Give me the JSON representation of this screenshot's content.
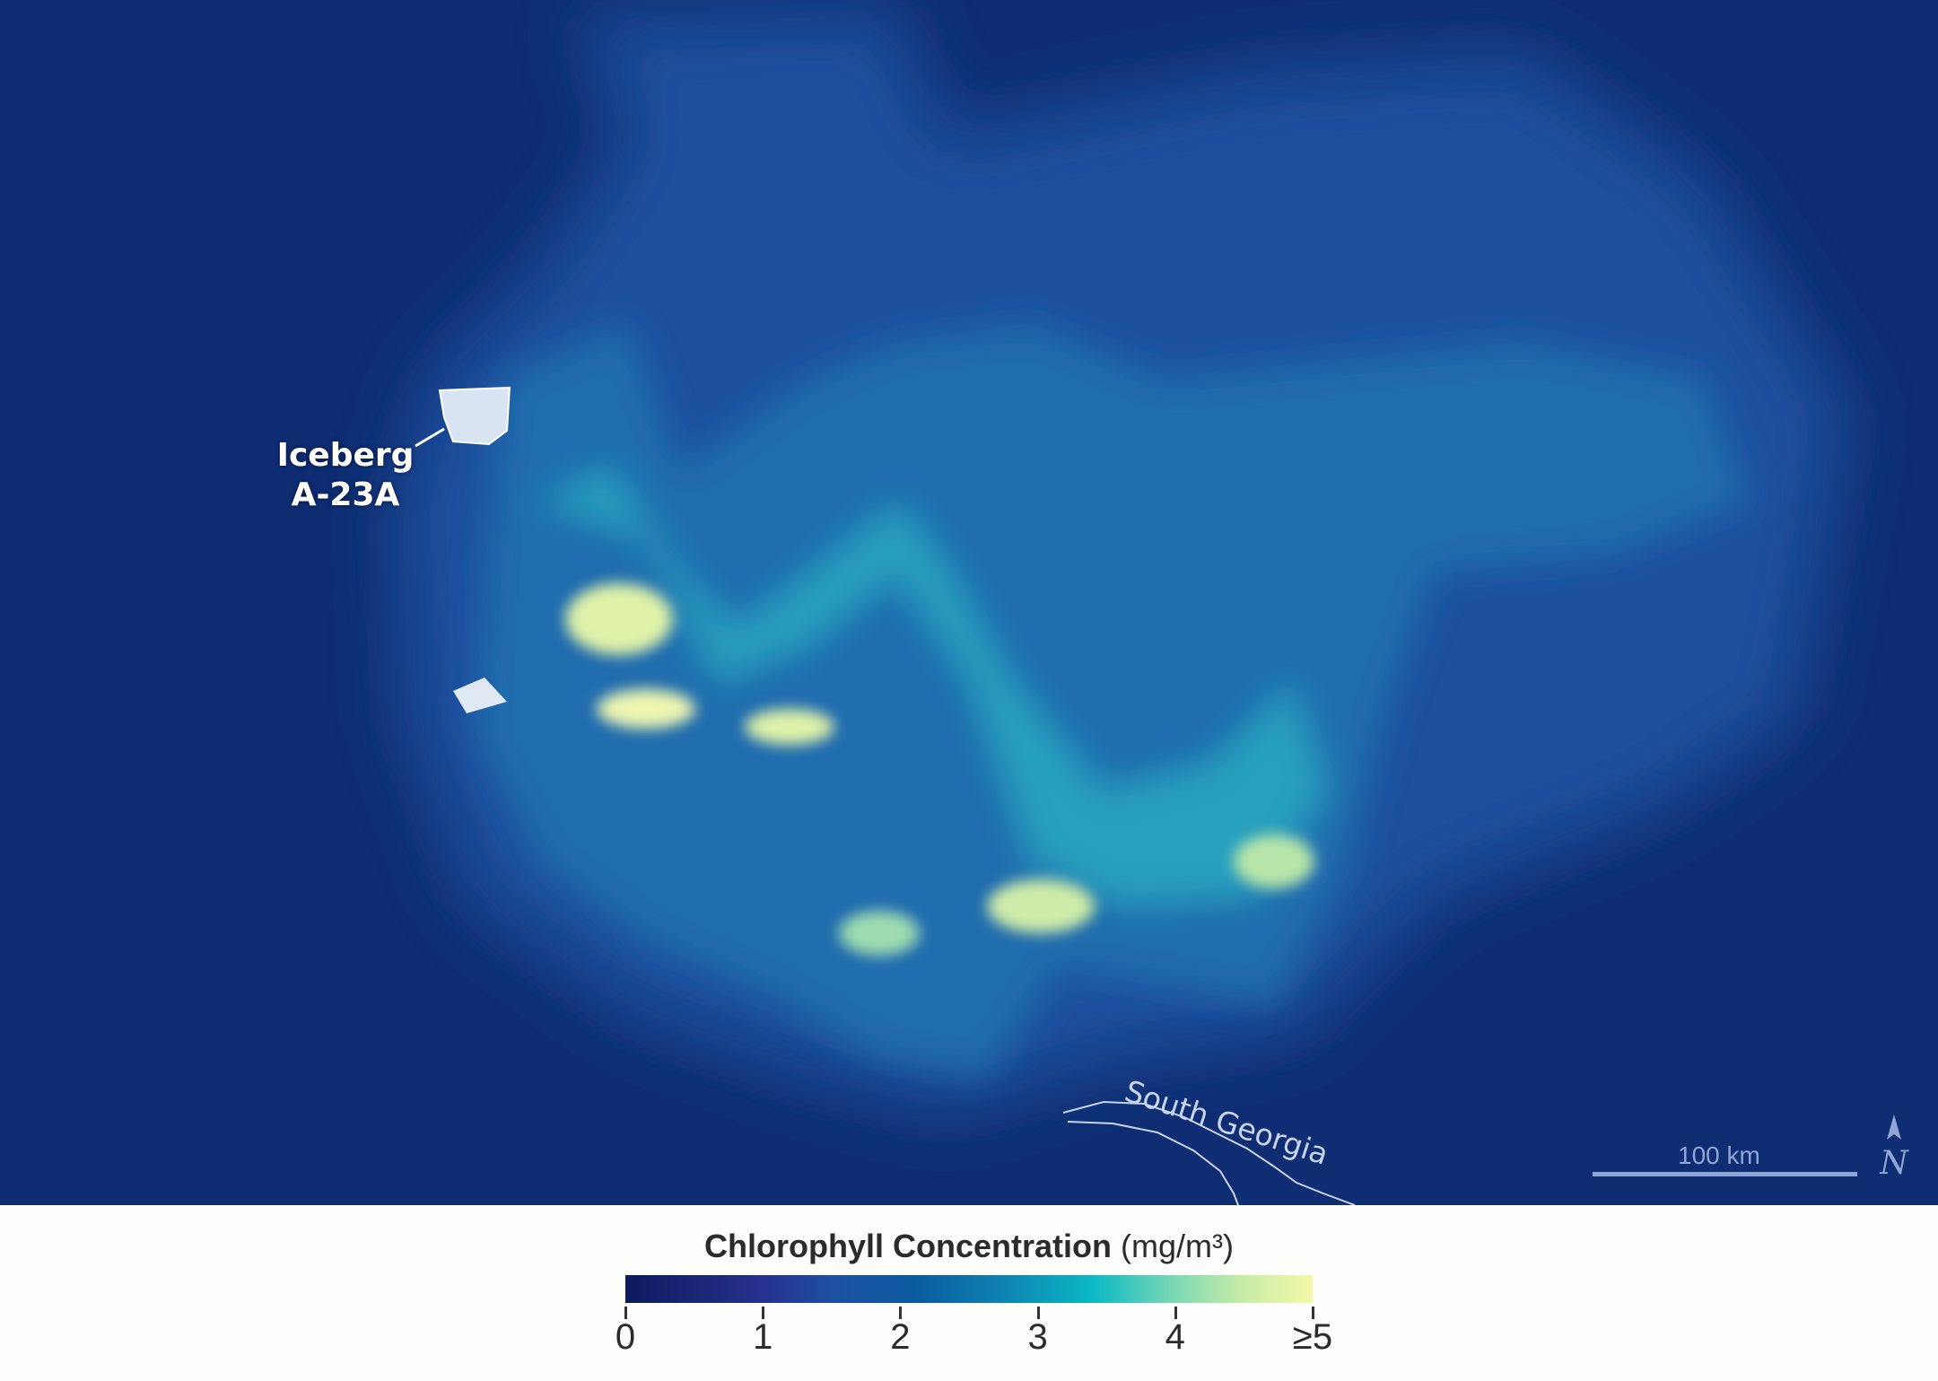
{
  "map": {
    "labels": {
      "iceberg_line1": "Iceberg",
      "iceberg_line2": "A-23A",
      "island": "South Georgia"
    },
    "scale_bar": "100 km",
    "north_arrow": "N",
    "colors": {
      "ocean": "#0e2d72",
      "bloom_mid": "#1f86b8",
      "bloom_high": "#f2f7b0"
    }
  },
  "legend": {
    "title_bold": "Chlorophyll Concentration",
    "units": "(mg/m³)",
    "ticks": [
      "0",
      "1",
      "2",
      "3",
      "4",
      "≥5"
    ],
    "colors": [
      "#0d1a5c",
      "#27318f",
      "#0a5aa0",
      "#0ab9c4",
      "#c9eda7",
      "#f4f8a8"
    ]
  }
}
